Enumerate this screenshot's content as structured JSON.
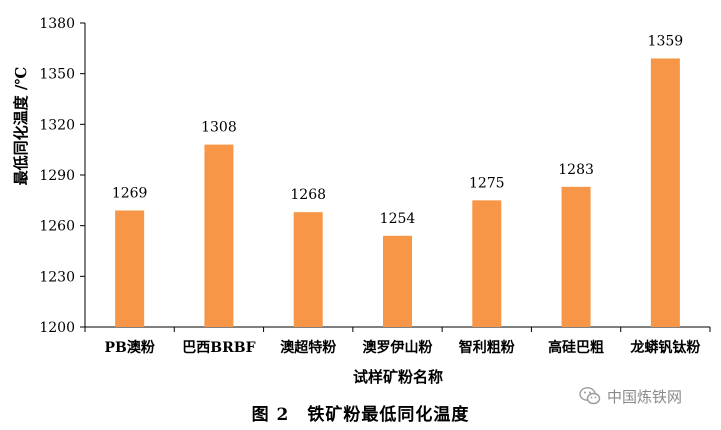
{
  "chart_data": {
    "type": "bar",
    "categories": [
      "PB澳粉",
      "巴西BRBF",
      "澳超特粉",
      "澳罗伊山粉",
      "智利粗粉",
      "高硅巴粗",
      "龙蟒钒钛粉"
    ],
    "values": [
      1269,
      1308,
      1268,
      1254,
      1275,
      1283,
      1359
    ],
    "data_labels": [
      "1269",
      "1308",
      "1268",
      "1254",
      "1275",
      "1283",
      "1359"
    ],
    "ylabel": "最低同化温度 /℃",
    "xlabel": "试样矿粉名称",
    "ylim": [
      1200,
      1380
    ],
    "yticks": [
      1200,
      1230,
      1260,
      1290,
      1320,
      1350,
      1380
    ],
    "bar_color": "#F79646",
    "grid": false,
    "legend": "none"
  },
  "caption": "图 2　铁矿粉最低同化温度",
  "watermark": {
    "text": "中国炼铁网",
    "icon": "wechat-logo-icon"
  }
}
